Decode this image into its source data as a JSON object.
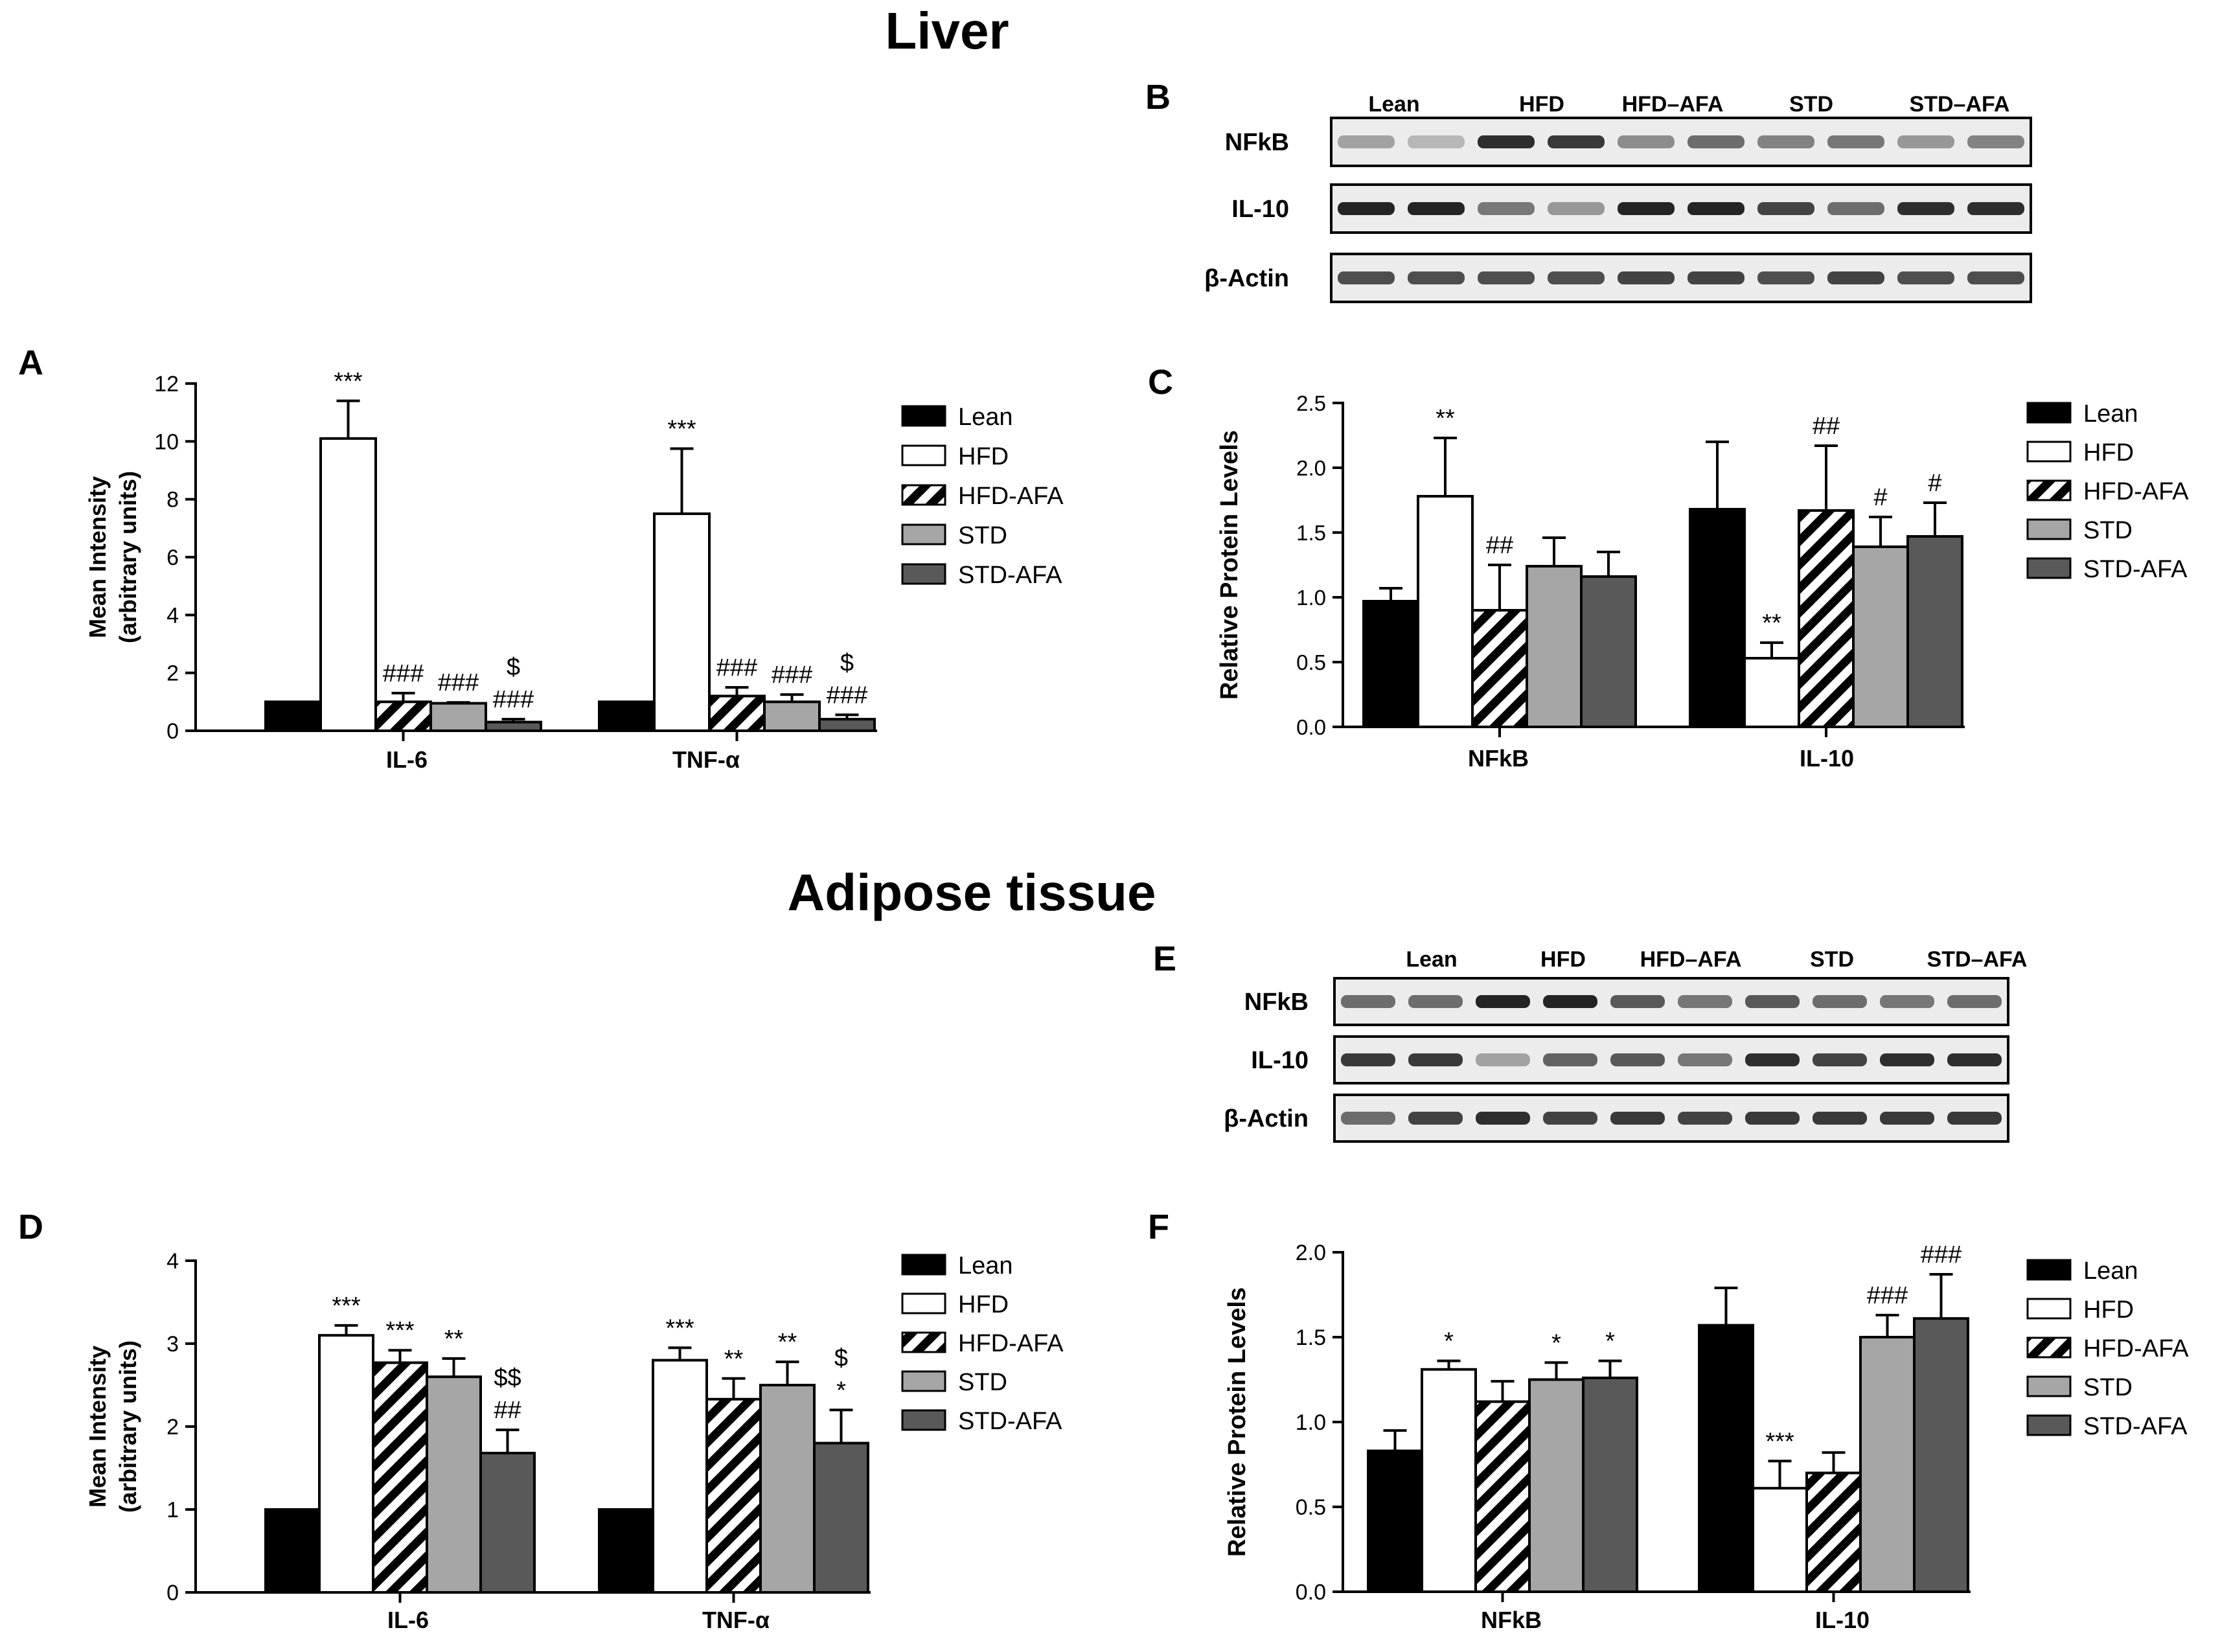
{
  "sections": {
    "liver": "Liver",
    "adipose": "Adipose tissue"
  },
  "panel_letters": {
    "A": "A",
    "B": "B",
    "C": "C",
    "D": "D",
    "E": "E",
    "F": "F"
  },
  "legend": {
    "items": [
      {
        "key": "lean",
        "label": "Lean"
      },
      {
        "key": "hfd",
        "label": "HFD"
      },
      {
        "key": "hfdafa",
        "label": "HFD-AFA"
      },
      {
        "key": "std",
        "label": "STD"
      },
      {
        "key": "stdafa",
        "label": "STD-AFA"
      }
    ]
  },
  "colors": {
    "lean": "#000000",
    "hfd": "#ffffff",
    "hfdafa": "hatch",
    "std": "#a6a6a6",
    "stdafa": "#595959",
    "axis": "#000000"
  },
  "blot_B": {
    "headers": [
      "Lean",
      "HFD",
      "HFD–AFA",
      "STD",
      "STD–AFA"
    ],
    "rows": [
      "NFkB",
      "IL-10",
      "β-Actin"
    ],
    "intensity": {
      "NFkB": [
        0.35,
        0.25,
        0.9,
        0.85,
        0.45,
        0.6,
        0.5,
        0.55,
        0.4,
        0.5
      ],
      "IL-10": [
        0.95,
        0.95,
        0.55,
        0.4,
        0.95,
        0.95,
        0.8,
        0.6,
        0.9,
        0.9
      ],
      "β-Actin": [
        0.75,
        0.75,
        0.75,
        0.75,
        0.8,
        0.8,
        0.75,
        0.8,
        0.75,
        0.75
      ]
    }
  },
  "blot_E": {
    "headers": [
      "Lean",
      "HFD",
      "HFD–AFA",
      "STD",
      "STD–AFA"
    ],
    "rows": [
      "NFkB",
      "IL-10",
      "β-Actin"
    ],
    "intensity": {
      "NFkB": [
        0.6,
        0.6,
        0.95,
        0.95,
        0.7,
        0.55,
        0.7,
        0.6,
        0.55,
        0.6
      ],
      "IL-10": [
        0.85,
        0.85,
        0.35,
        0.65,
        0.7,
        0.55,
        0.9,
        0.8,
        0.9,
        0.9
      ],
      "β-Actin": [
        0.6,
        0.8,
        0.9,
        0.8,
        0.85,
        0.8,
        0.85,
        0.85,
        0.85,
        0.85
      ]
    }
  },
  "chart_data": [
    {
      "panel": "A",
      "type": "bar",
      "ylabel": "Mean Intensity",
      "ylabel2": "(arbitrary units)",
      "ylim": [
        0,
        12
      ],
      "yticks": [
        0,
        2,
        4,
        6,
        8,
        10,
        12
      ],
      "ytick_labels": [
        "0",
        "2",
        "4",
        "6",
        "8",
        "10",
        "12"
      ],
      "categories": [
        "IL-6",
        "TNF-α"
      ],
      "series": [
        {
          "name": "Lean",
          "values": [
            1.0,
            1.0
          ],
          "errors": [
            0,
            0
          ],
          "annotations": [
            "",
            ""
          ]
        },
        {
          "name": "HFD",
          "values": [
            10.1,
            7.5
          ],
          "errors": [
            1.3,
            2.25
          ],
          "annotations": [
            "***",
            "***"
          ]
        },
        {
          "name": "HFD-AFA",
          "values": [
            1.0,
            1.2
          ],
          "errors": [
            0.3,
            0.3
          ],
          "annotations": [
            "###",
            "###"
          ]
        },
        {
          "name": "STD",
          "values": [
            0.95,
            1.0
          ],
          "errors": [
            0.03,
            0.25
          ],
          "annotations": [
            "###",
            "###"
          ]
        },
        {
          "name": "STD-AFA",
          "values": [
            0.3,
            0.4
          ],
          "errors": [
            0.1,
            0.15
          ],
          "annotations": [
            "$\n###",
            "$\n###"
          ]
        }
      ]
    },
    {
      "panel": "C",
      "type": "bar",
      "ylabel": "Relative Protein Levels",
      "ylim": [
        0,
        2.5
      ],
      "yticks": [
        0,
        0.5,
        1,
        1.5,
        2,
        2.5
      ],
      "ytick_labels": [
        "0.0",
        "0.5",
        "1.0",
        "1.5",
        "2.0",
        "2.5"
      ],
      "categories": [
        "NFkB",
        "IL-10"
      ],
      "series": [
        {
          "name": "Lean",
          "values": [
            0.97,
            1.68
          ],
          "errors": [
            0.1,
            0.52
          ],
          "annotations": [
            "",
            ""
          ]
        },
        {
          "name": "HFD",
          "values": [
            1.78,
            0.53
          ],
          "errors": [
            0.45,
            0.12
          ],
          "annotations": [
            "**",
            "**"
          ]
        },
        {
          "name": "HFD-AFA",
          "values": [
            0.9,
            1.67
          ],
          "errors": [
            0.35,
            0.5
          ],
          "annotations": [
            "##",
            "##"
          ]
        },
        {
          "name": "STD",
          "values": [
            1.24,
            1.39
          ],
          "errors": [
            0.22,
            0.23
          ],
          "annotations": [
            "",
            "#"
          ]
        },
        {
          "name": "STD-AFA",
          "values": [
            1.16,
            1.47
          ],
          "errors": [
            0.19,
            0.26
          ],
          "annotations": [
            "",
            "#"
          ]
        }
      ]
    },
    {
      "panel": "D",
      "type": "bar",
      "ylabel": "Mean Intensity",
      "ylabel2": "(arbitrary units)",
      "ylim": [
        0,
        4
      ],
      "yticks": [
        0,
        1,
        2,
        3,
        4
      ],
      "ytick_labels": [
        "0",
        "1",
        "2",
        "3",
        "4"
      ],
      "categories": [
        "IL-6",
        "TNF-α"
      ],
      "series": [
        {
          "name": "Lean",
          "values": [
            1.0,
            1.0
          ],
          "errors": [
            0,
            0
          ],
          "annotations": [
            "",
            ""
          ]
        },
        {
          "name": "HFD",
          "values": [
            3.1,
            2.8
          ],
          "errors": [
            0.12,
            0.15
          ],
          "annotations": [
            "***",
            "***"
          ]
        },
        {
          "name": "HFD-AFA",
          "values": [
            2.77,
            2.33
          ],
          "errors": [
            0.15,
            0.25
          ],
          "annotations": [
            "***",
            "**"
          ]
        },
        {
          "name": "STD",
          "values": [
            2.6,
            2.5
          ],
          "errors": [
            0.22,
            0.28
          ],
          "annotations": [
            "**",
            "**"
          ]
        },
        {
          "name": "STD-AFA",
          "values": [
            1.68,
            1.8
          ],
          "errors": [
            0.28,
            0.4
          ],
          "annotations": [
            "$$\n##",
            "$\n*"
          ]
        }
      ]
    },
    {
      "panel": "F",
      "type": "bar",
      "ylabel": "Relative Protein Levels",
      "ylim": [
        0,
        2.0
      ],
      "yticks": [
        0,
        0.5,
        1,
        1.5,
        2
      ],
      "ytick_labels": [
        "0.0",
        "0.5",
        "1.0",
        "1.5",
        "2.0"
      ],
      "categories": [
        "NFkB",
        "IL-10"
      ],
      "series": [
        {
          "name": "Lean",
          "values": [
            0.83,
            1.57
          ],
          "errors": [
            0.12,
            0.22
          ],
          "annotations": [
            "",
            ""
          ]
        },
        {
          "name": "HFD",
          "values": [
            1.31,
            0.61
          ],
          "errors": [
            0.05,
            0.16
          ],
          "annotations": [
            "*",
            "***"
          ]
        },
        {
          "name": "HFD-AFA",
          "values": [
            1.12,
            0.7
          ],
          "errors": [
            0.12,
            0.12
          ],
          "annotations": [
            "",
            ""
          ]
        },
        {
          "name": "STD",
          "values": [
            1.25,
            1.5
          ],
          "errors": [
            0.1,
            0.13
          ],
          "annotations": [
            "*",
            "###"
          ]
        },
        {
          "name": "STD-AFA",
          "values": [
            1.26,
            1.61
          ],
          "errors": [
            0.1,
            0.26
          ],
          "annotations": [
            "*",
            "###"
          ]
        }
      ]
    }
  ]
}
